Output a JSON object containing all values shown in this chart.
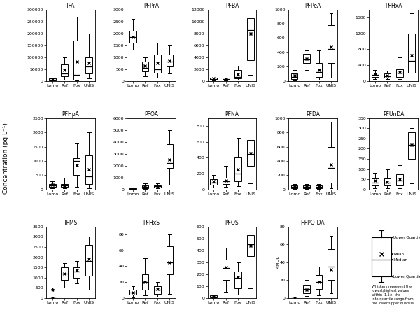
{
  "subplots": [
    {
      "title": "TFA",
      "ylim": [
        0,
        300000
      ],
      "yticks": [
        0,
        50000,
        100000,
        150000,
        200000,
        250000,
        300000
      ],
      "groups": {
        "Lomo": {
          "q1": 2000,
          "median": 5000,
          "q3": 10000,
          "mean": 8000,
          "whislo": 500,
          "whishi": 15000
        },
        "Ref": {
          "q1": 20000,
          "median": 32000,
          "q3": 70000,
          "mean": 45000,
          "whislo": 5000,
          "whishi": 100000
        },
        "Fox": {
          "q1": 5000,
          "median": 25000,
          "q3": 170000,
          "mean": 80000,
          "whislo": 2000,
          "whishi": 270000
        },
        "UNIS": {
          "q1": 30000,
          "median": 60000,
          "q3": 100000,
          "mean": 75000,
          "whislo": 10000,
          "whishi": 200000
        }
      }
    },
    {
      "title": "PFPrA",
      "ylim": [
        0,
        3000
      ],
      "yticks": [
        0,
        500,
        1000,
        1500,
        2000,
        2500,
        3000
      ],
      "groups": {
        "Lomo": {
          "q1": 1600,
          "median": 1850,
          "q3": 2100,
          "mean": 1850,
          "whislo": 1300,
          "whishi": 2600
        },
        "Ref": {
          "q1": 400,
          "median": 550,
          "q3": 800,
          "mean": 650,
          "whislo": 200,
          "whishi": 1000
        },
        "Fox": {
          "q1": 350,
          "median": 500,
          "q3": 1100,
          "mean": 750,
          "whislo": 150,
          "whishi": 1600
        },
        "UNIS": {
          "q1": 600,
          "median": 800,
          "q3": 1100,
          "mean": 850,
          "whislo": 300,
          "whishi": 1500
        }
      }
    },
    {
      "title": "PFBA",
      "ylim": [
        0,
        12000
      ],
      "yticks": [
        0,
        2000,
        4000,
        6000,
        8000,
        10000,
        12000
      ],
      "groups": {
        "Lomo": {
          "q1": 200,
          "median": 300,
          "q3": 500,
          "mean": 380,
          "whislo": 100,
          "whishi": 600
        },
        "Ref": {
          "q1": 200,
          "median": 300,
          "q3": 500,
          "mean": 350,
          "whislo": 100,
          "whishi": 600
        },
        "Fox": {
          "q1": 400,
          "median": 700,
          "q3": 1800,
          "mean": 1100,
          "whislo": 200,
          "whishi": 2500
        },
        "UNIS": {
          "q1": 3500,
          "median": 8500,
          "q3": 10500,
          "mean": 8000,
          "whislo": 1000,
          "whishi": 11500
        }
      }
    },
    {
      "title": "PFPeA",
      "ylim": [
        0,
        1000
      ],
      "yticks": [
        0,
        200,
        400,
        600,
        800,
        1000
      ],
      "groups": {
        "Lomo": {
          "q1": 30,
          "median": 55,
          "q3": 100,
          "mean": 70,
          "whislo": 10,
          "whishi": 150
        },
        "Ref": {
          "q1": 250,
          "median": 300,
          "q3": 380,
          "mean": 310,
          "whislo": 150,
          "whishi": 430
        },
        "Fox": {
          "q1": 60,
          "median": 120,
          "q3": 250,
          "mean": 150,
          "whislo": 20,
          "whishi": 430
        },
        "UNIS": {
          "q1": 250,
          "median": 450,
          "q3": 780,
          "mean": 480,
          "whislo": 50,
          "whishi": 950
        }
      }
    },
    {
      "title": "PFHxA",
      "ylim": [
        0,
        1800
      ],
      "yticks": [
        0,
        400,
        800,
        1200,
        1600
      ],
      "groups": {
        "Lomo": {
          "q1": 100,
          "median": 160,
          "q3": 200,
          "mean": 170,
          "whislo": 50,
          "whishi": 280
        },
        "Ref": {
          "q1": 80,
          "median": 120,
          "q3": 180,
          "mean": 130,
          "whislo": 40,
          "whishi": 250
        },
        "Fox": {
          "q1": 100,
          "median": 200,
          "q3": 300,
          "mean": 220,
          "whislo": 50,
          "whishi": 600
        },
        "UNIS": {
          "q1": 200,
          "median": 500,
          "q3": 1200,
          "mean": 650,
          "whislo": 80,
          "whishi": 1700
        }
      }
    },
    {
      "title": "PFHpA",
      "ylim": [
        0,
        2500
      ],
      "yticks": [
        0,
        500,
        1000,
        1500,
        2000,
        2500
      ],
      "groups": {
        "Lomo": {
          "q1": 80,
          "median": 150,
          "q3": 200,
          "mean": 160,
          "whislo": 30,
          "whishi": 280
        },
        "Ref": {
          "q1": 80,
          "median": 140,
          "q3": 200,
          "mean": 150,
          "whislo": 30,
          "whishi": 400
        },
        "Fox": {
          "q1": 500,
          "median": 1000,
          "q3": 1100,
          "mean": 850,
          "whislo": 100,
          "whishi": 1600
        },
        "UNIS": {
          "q1": 200,
          "median": 450,
          "q3": 1200,
          "mean": 700,
          "whislo": 50,
          "whishi": 2000
        }
      }
    },
    {
      "title": "PFOA",
      "ylim": [
        0,
        6000
      ],
      "yticks": [
        0,
        1000,
        2000,
        3000,
        4000,
        5000,
        6000
      ],
      "groups": {
        "Lomo": {
          "q1": 30,
          "median": 60,
          "q3": 100,
          "mean": 70,
          "whislo": 10,
          "whishi": 150
        },
        "Ref": {
          "q1": 100,
          "median": 200,
          "q3": 350,
          "mean": 230,
          "whislo": 50,
          "whishi": 500
        },
        "Fox": {
          "q1": 150,
          "median": 250,
          "q3": 350,
          "mean": 280,
          "whislo": 80,
          "whishi": 500
        },
        "UNIS": {
          "q1": 1800,
          "median": 2200,
          "q3": 3800,
          "mean": 2500,
          "whislo": 400,
          "whishi": 5000
        }
      }
    },
    {
      "title": "PFNA",
      "ylim": [
        0,
        900
      ],
      "yticks": [
        0,
        200,
        400,
        600,
        800
      ],
      "groups": {
        "Lomo": {
          "q1": 60,
          "median": 90,
          "q3": 130,
          "mean": 100,
          "whislo": 20,
          "whishi": 180
        },
        "Ref": {
          "q1": 70,
          "median": 100,
          "q3": 150,
          "mean": 110,
          "whislo": 30,
          "whishi": 300
        },
        "Fox": {
          "q1": 100,
          "median": 200,
          "q3": 400,
          "mean": 250,
          "whislo": 40,
          "whishi": 650
        },
        "UNIS": {
          "q1": 300,
          "median": 450,
          "q3": 620,
          "mean": 460,
          "whislo": 80,
          "whishi": 700
        }
      }
    },
    {
      "title": "PFDA",
      "ylim": [
        0,
        1000
      ],
      "yticks": [
        0,
        200,
        400,
        600,
        800,
        1000
      ],
      "groups": {
        "Lomo": {
          "q1": 20,
          "median": 35,
          "q3": 55,
          "mean": 40,
          "whislo": 5,
          "whishi": 80
        },
        "Ref": {
          "q1": 20,
          "median": 35,
          "q3": 55,
          "mean": 40,
          "whislo": 5,
          "whishi": 80
        },
        "Fox": {
          "q1": 20,
          "median": 35,
          "q3": 55,
          "mean": 40,
          "whislo": 5,
          "whishi": 80
        },
        "UNIS": {
          "q1": 100,
          "median": 300,
          "q3": 600,
          "mean": 350,
          "whislo": 20,
          "whishi": 950
        }
      }
    },
    {
      "title": "PFUnDA",
      "ylim": [
        0,
        350
      ],
      "yticks": [
        0,
        50,
        100,
        150,
        200,
        250,
        300,
        350
      ],
      "groups": {
        "Lomo": {
          "q1": 20,
          "median": 35,
          "q3": 55,
          "mean": 42,
          "whislo": 5,
          "whishi": 80
        },
        "Ref": {
          "q1": 20,
          "median": 35,
          "q3": 55,
          "mean": 38,
          "whislo": 5,
          "whishi": 100
        },
        "Fox": {
          "q1": 20,
          "median": 45,
          "q3": 75,
          "mean": 50,
          "whislo": 5,
          "whishi": 120
        },
        "UNIS": {
          "q1": 150,
          "median": 220,
          "q3": 280,
          "mean": 220,
          "whislo": 30,
          "whishi": 300
        }
      }
    },
    {
      "title": "TFMS",
      "ylim": [
        0,
        3500
      ],
      "yticks": [
        0,
        500,
        1000,
        1500,
        2000,
        2500,
        3000,
        3500
      ],
      "groups": {
        "Lomo": {
          "q1": 0,
          "median": 0,
          "q3": 0,
          "mean": 0,
          "whislo": 0,
          "whishi": 0,
          "fliers": [
            400
          ]
        },
        "Ref": {
          "q1": 900,
          "median": 1200,
          "q3": 1500,
          "mean": 1200,
          "whislo": 500,
          "whishi": 1700
        },
        "Fox": {
          "q1": 1000,
          "median": 1300,
          "q3": 1500,
          "mean": 1350,
          "whislo": 700,
          "whishi": 1800
        },
        "UNIS": {
          "q1": 1100,
          "median": 1800,
          "q3": 2600,
          "mean": 1900,
          "whislo": 400,
          "whishi": 3000
        }
      }
    },
    {
      "title": "PFHxS",
      "ylim": [
        0,
        90
      ],
      "yticks": [
        0,
        20,
        40,
        60,
        80
      ],
      "groups": {
        "Lomo": {
          "q1": 4,
          "median": 7,
          "q3": 10,
          "mean": 7,
          "whislo": 1,
          "whishi": 15
        },
        "Ref": {
          "q1": 10,
          "median": 20,
          "q3": 30,
          "mean": 20,
          "whislo": 3,
          "whishi": 50
        },
        "Fox": {
          "q1": 5,
          "median": 10,
          "q3": 15,
          "mean": 11,
          "whislo": 2,
          "whishi": 20
        },
        "UNIS": {
          "q1": 30,
          "median": 45,
          "q3": 65,
          "mean": 45,
          "whislo": 5,
          "whishi": 80
        }
      }
    },
    {
      "title": "PFOS",
      "ylim": [
        0,
        600
      ],
      "yticks": [
        0,
        100,
        200,
        300,
        400,
        500,
        600
      ],
      "groups": {
        "Lomo": {
          "q1": 5,
          "median": 10,
          "q3": 20,
          "mean": 12,
          "whislo": 2,
          "whishi": 30
        },
        "Ref": {
          "q1": 150,
          "median": 250,
          "q3": 320,
          "mean": 260,
          "whislo": 50,
          "whishi": 420
        },
        "Fox": {
          "q1": 80,
          "median": 170,
          "q3": 220,
          "mean": 175,
          "whislo": 30,
          "whishi": 300
        },
        "UNIS": {
          "q1": 350,
          "median": 450,
          "q3": 530,
          "mean": 440,
          "whislo": 80,
          "whishi": 560
        }
      }
    },
    {
      "title": "HFPO-DA",
      "ylim": [
        0,
        80
      ],
      "yticks": [
        0,
        20,
        40,
        60,
        80
      ],
      "ylabel_special": "<MQL",
      "groups": {
        "Lomo": {
          "q1": 0,
          "median": 0,
          "q3": 0,
          "mean": 0,
          "whislo": 0,
          "whishi": 0
        },
        "Ref": {
          "q1": 5,
          "median": 10,
          "q3": 15,
          "mean": 9,
          "whislo": 2,
          "whishi": 20
        },
        "Fox": {
          "q1": 10,
          "median": 18,
          "q3": 26,
          "mean": 18,
          "whislo": 3,
          "whishi": 35
        },
        "UNIS": {
          "q1": 20,
          "median": 35,
          "q3": 55,
          "mean": 32,
          "whislo": 5,
          "whishi": 70
        }
      }
    }
  ],
  "group_labels": [
    "Lomo",
    "Ref",
    "Fox",
    "UNIS"
  ],
  "ylabel": "Concentration (pg L⁻¹)",
  "legend_note": "Whiskers represent the\nlowest/highest values\nwithin  1.5×  the\ninterquartile range from\nthe lower/upper quartile."
}
